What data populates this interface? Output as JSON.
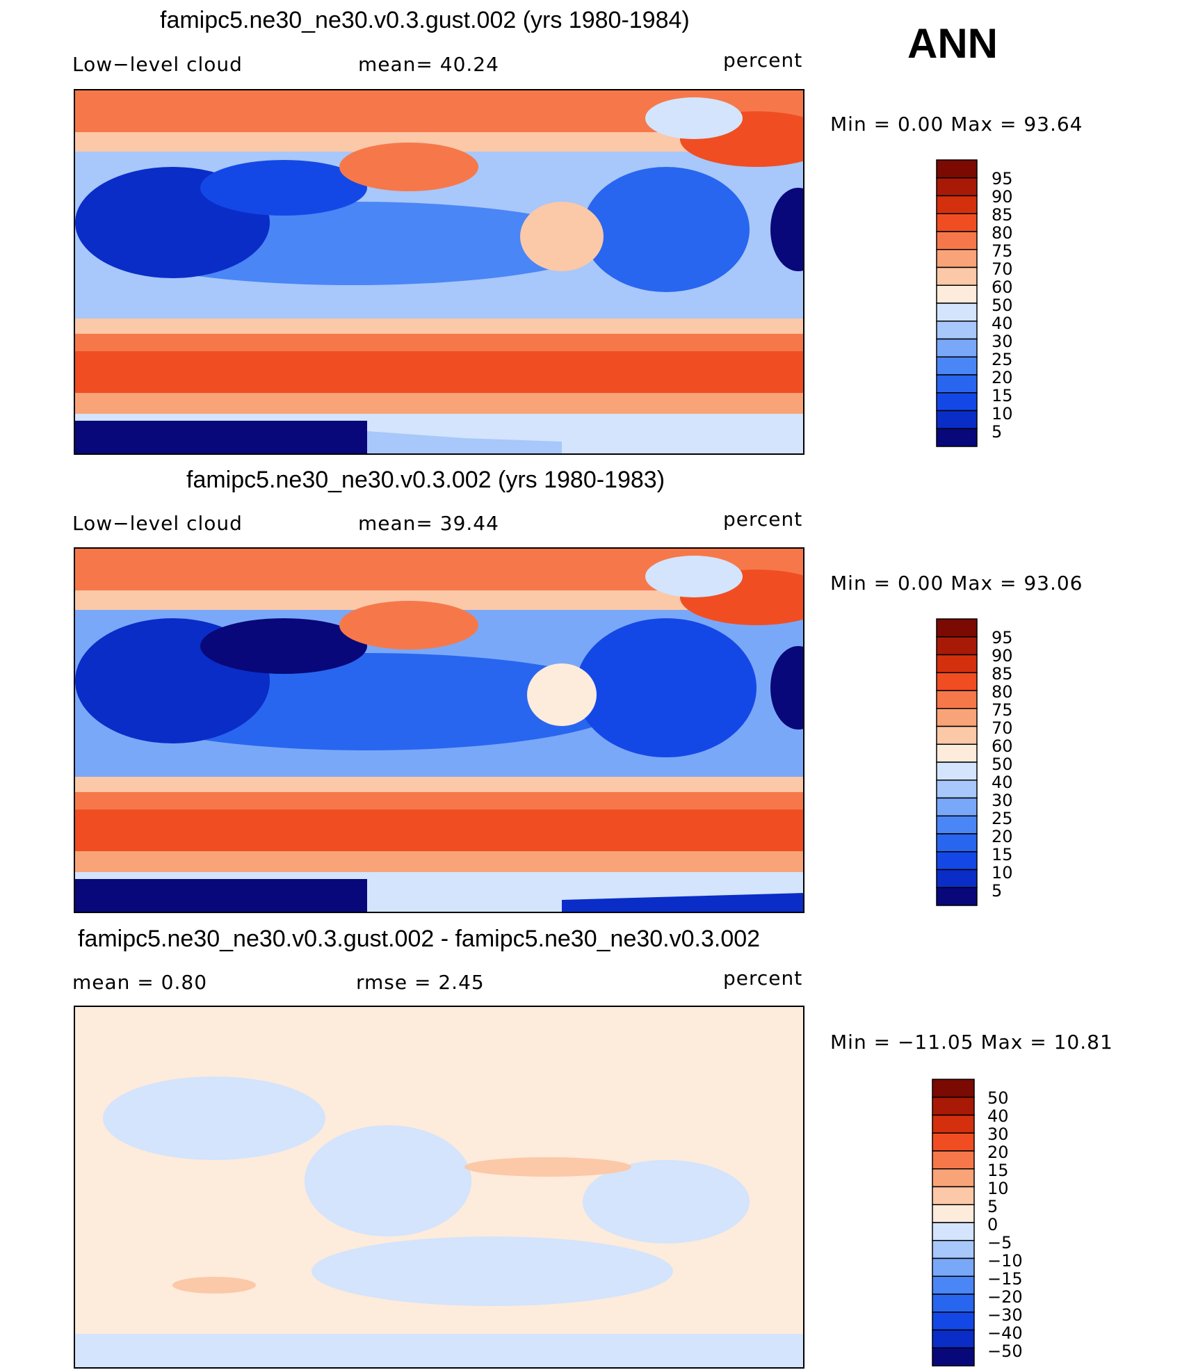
{
  "season": "ANN",
  "colors": {
    "abs_scale": [
      "#08087a",
      "#0a2dc8",
      "#1448e6",
      "#2866f0",
      "#4a86f5",
      "#7aa8f8",
      "#a8c7fa",
      "#d3e4fc",
      "#fdebdc",
      "#fbc8a8",
      "#f9a478",
      "#f6784a",
      "#f04e22",
      "#d4300d",
      "#a81a06",
      "#7a0a02"
    ],
    "diff_scale": [
      "#08087a",
      "#0a2dc8",
      "#1448e6",
      "#2866f0",
      "#4a86f5",
      "#7aa8f8",
      "#a8c7fa",
      "#d3e4fc",
      "#fdebdc",
      "#fbc8a8",
      "#f9a478",
      "#f6784a",
      "#f04e22",
      "#d4300d",
      "#a81a06",
      "#7a0a02"
    ]
  },
  "chart_data": [
    {
      "type": "heatmap",
      "title": "famipc5.ne30_ne30.v0.3.gust.002 (yrs 1980-1984)",
      "left_label": "Low−level cloud",
      "mid_label": "mean=   40.24",
      "units": "percent",
      "stats": "Min  =     0.00  Max  =    93.64",
      "mean": 40.24,
      "min": 0.0,
      "max": 93.64,
      "colorbar_levels": [
        "95",
        "90",
        "85",
        "80",
        "75",
        "70",
        "60",
        "50",
        "40",
        "30",
        "25",
        "20",
        "15",
        "10",
        "5"
      ]
    },
    {
      "type": "heatmap",
      "title": "famipc5.ne30_ne30.v0.3.002 (yrs 1980-1983)",
      "left_label": "Low−level cloud",
      "mid_label": "mean=   39.44",
      "units": "percent",
      "stats": "Min  =     0.00  Max  =    93.06",
      "mean": 39.44,
      "min": 0.0,
      "max": 93.06,
      "colorbar_levels": [
        "95",
        "90",
        "85",
        "80",
        "75",
        "70",
        "60",
        "50",
        "40",
        "30",
        "25",
        "20",
        "15",
        "10",
        "5"
      ]
    },
    {
      "type": "heatmap",
      "title": "famipc5.ne30_ne30.v0.3.gust.002 - famipc5.ne30_ne30.v0.3.002",
      "left_label": "mean  =     0.80",
      "mid_label": "rmse  =     2.45",
      "units": "percent",
      "stats": "Min  = −11.05  Max  =    10.81",
      "mean": 0.8,
      "rmse": 2.45,
      "min": -11.05,
      "max": 10.81,
      "colorbar_levels": [
        "50",
        "40",
        "30",
        "20",
        "15",
        "10",
        "5",
        "0",
        "−5",
        "−10",
        "−15",
        "−20",
        "−30",
        "−40",
        "−50"
      ]
    }
  ]
}
